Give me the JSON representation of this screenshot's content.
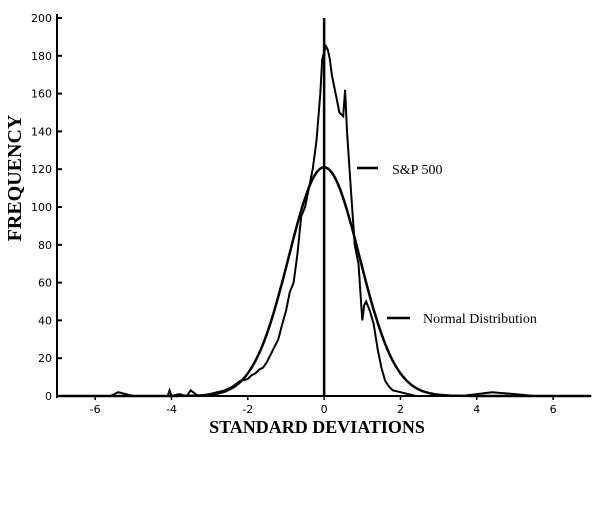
{
  "chart_data": {
    "type": "line",
    "xlabel": "STANDARD DEVIATIONS",
    "ylabel": "FREQUENCY",
    "xlim": [
      -7,
      6.6
    ],
    "ylim": [
      0,
      200
    ],
    "x_ticks": [
      -6,
      -4,
      -2,
      0,
      2,
      4,
      6
    ],
    "y_ticks": [
      0,
      20,
      40,
      60,
      80,
      100,
      120,
      140,
      160,
      180,
      200
    ],
    "grid": false,
    "vertical_line_at_x": 0,
    "series": [
      {
        "name": "S&P 500",
        "x": [
          -7.0,
          -6.0,
          -5.6,
          -5.4,
          -5.0,
          -4.6,
          -4.1,
          -4.05,
          -4.0,
          -3.8,
          -3.6,
          -3.5,
          -3.3,
          -3.0,
          -2.8,
          -2.6,
          -2.4,
          -2.2,
          -2.0,
          -1.9,
          -1.8,
          -1.7,
          -1.6,
          -1.5,
          -1.4,
          -1.2,
          -1.1,
          -1.0,
          -0.9,
          -0.8,
          -0.7,
          -0.6,
          -0.5,
          -0.4,
          -0.3,
          -0.2,
          -0.1,
          -0.05,
          0.0,
          0.05,
          0.1,
          0.15,
          0.2,
          0.3,
          0.4,
          0.5,
          0.55,
          0.6,
          0.7,
          0.8,
          0.85,
          0.9,
          1.0,
          1.05,
          1.1,
          1.2,
          1.3,
          1.4,
          1.5,
          1.6,
          1.7,
          1.8,
          2.0,
          2.2,
          2.4,
          2.6,
          2.8,
          3.0,
          3.3,
          3.6,
          4.0,
          4.4,
          5.0,
          5.5,
          6.0,
          6.6
        ],
        "values": [
          0,
          0,
          0,
          2,
          0,
          0,
          0,
          3,
          0,
          1,
          0,
          3,
          0,
          1,
          2,
          3,
          5,
          8,
          9,
          11,
          12,
          14,
          15,
          18,
          22,
          30,
          38,
          45,
          55,
          60,
          75,
          95,
          100,
          110,
          120,
          135,
          160,
          178,
          182,
          185,
          183,
          178,
          170,
          160,
          150,
          148,
          162,
          140,
          110,
          80,
          75,
          70,
          40,
          48,
          50,
          45,
          38,
          25,
          15,
          8,
          5,
          3,
          2,
          1,
          0,
          0,
          0,
          0,
          0,
          0,
          1,
          2,
          1,
          0,
          0,
          0
        ]
      },
      {
        "name": "Normal Distribution",
        "mean": 0,
        "std_dev": 0.93,
        "peak": 121
      }
    ]
  }
}
